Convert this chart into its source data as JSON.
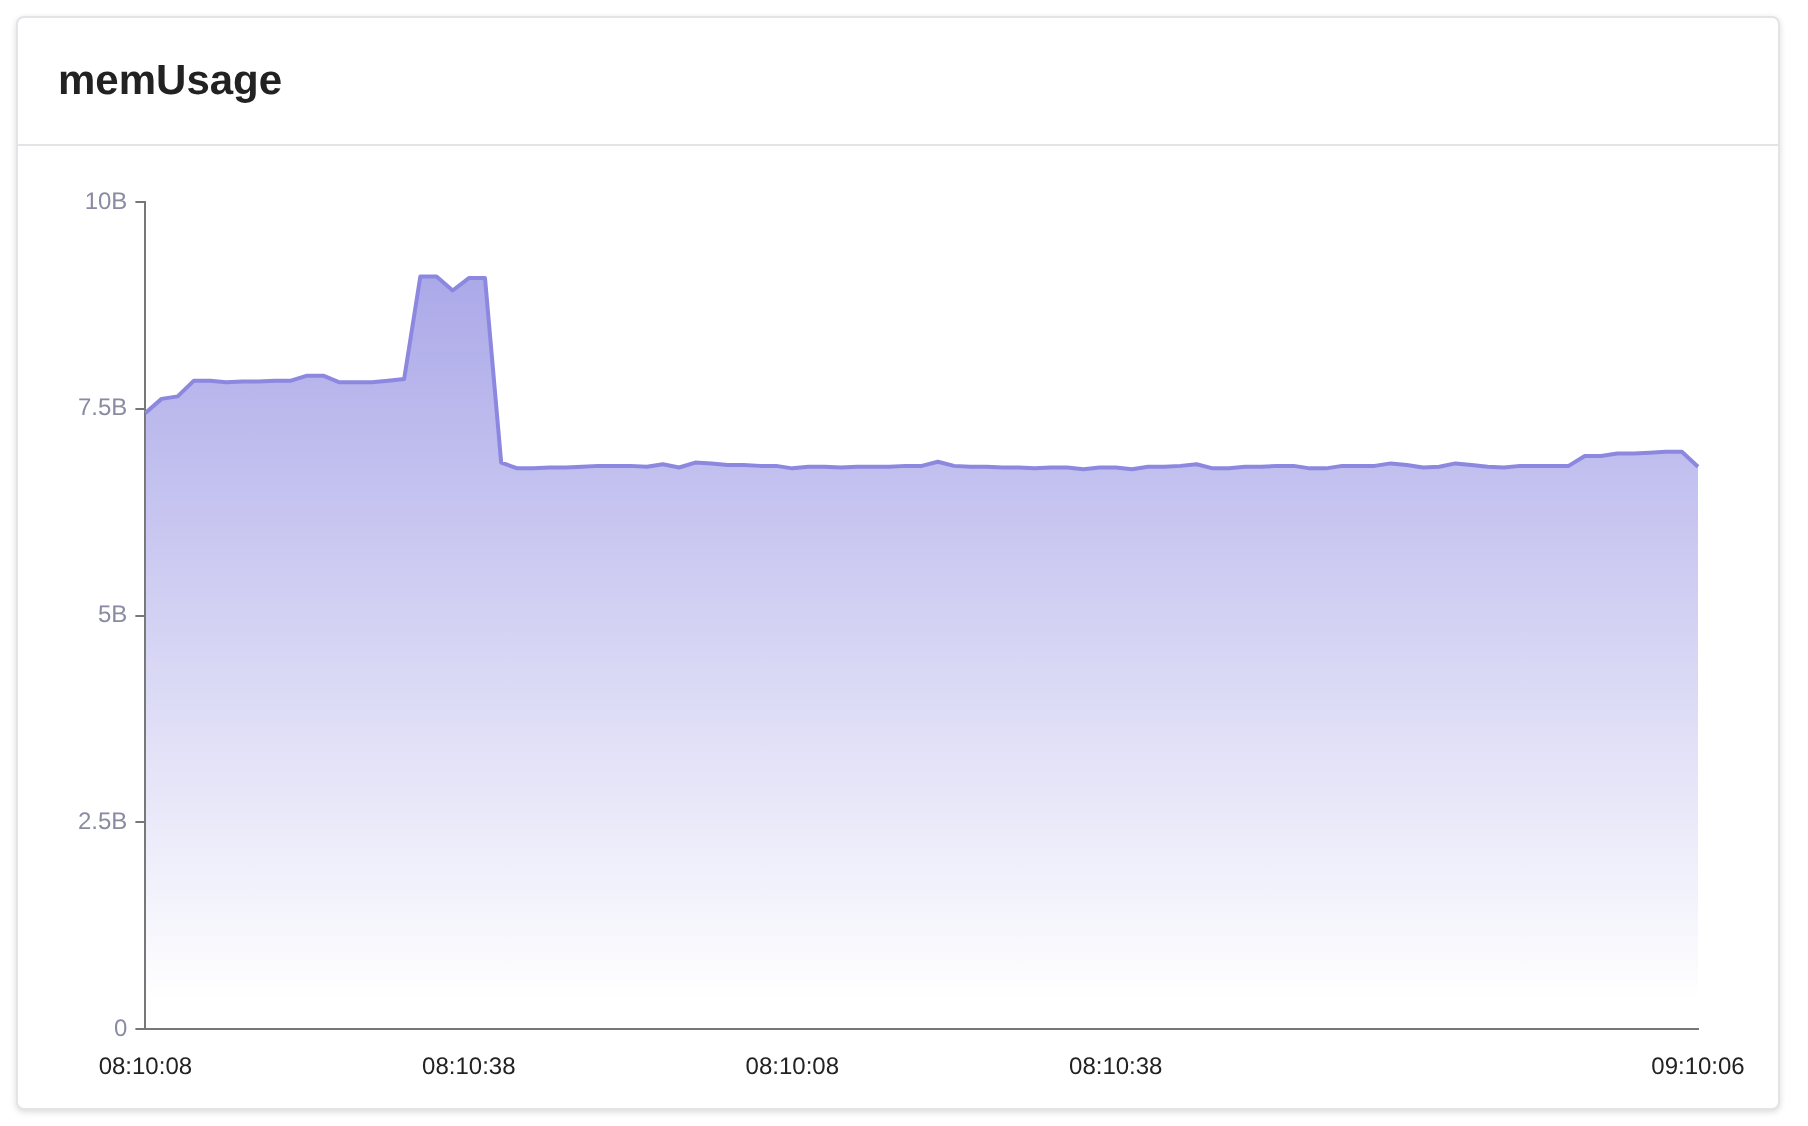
{
  "chart_data": {
    "type": "area",
    "title": "memUsage",
    "categories": [
      "08:10:08",
      null,
      null,
      null,
      null,
      null,
      null,
      null,
      null,
      null,
      null,
      null,
      null,
      null,
      null,
      null,
      null,
      null,
      null,
      null,
      "08:10:38",
      null,
      null,
      null,
      null,
      null,
      null,
      null,
      null,
      null,
      null,
      null,
      null,
      null,
      null,
      null,
      null,
      null,
      null,
      null,
      "08:10:08",
      null,
      null,
      null,
      null,
      null,
      null,
      null,
      null,
      null,
      null,
      null,
      null,
      null,
      null,
      null,
      null,
      null,
      null,
      null,
      "08:10:38",
      null,
      null,
      null,
      null,
      null,
      null,
      null,
      null,
      null,
      null,
      null,
      null,
      null,
      null,
      null,
      null,
      null,
      null,
      null,
      null,
      null,
      null,
      null,
      null,
      null,
      null,
      null,
      null,
      null,
      null,
      null,
      null,
      null,
      null,
      null,
      "09:10:06"
    ],
    "series": [
      {
        "color": "#8c88e0",
        "values": [
          7.45,
          7.62,
          7.65,
          7.84,
          7.84,
          7.82,
          7.83,
          7.83,
          7.84,
          7.84,
          7.9,
          7.9,
          7.82,
          7.82,
          7.82,
          7.84,
          7.86,
          9.1,
          9.1,
          8.93,
          9.08,
          9.08,
          6.85,
          6.78,
          6.78,
          6.79,
          6.79,
          6.8,
          6.81,
          6.81,
          6.81,
          6.8,
          6.83,
          6.79,
          6.85,
          6.84,
          6.82,
          6.82,
          6.81,
          6.81,
          6.78,
          6.8,
          6.8,
          6.79,
          6.8,
          6.8,
          6.8,
          6.81,
          6.81,
          6.86,
          6.81,
          6.8,
          6.8,
          6.79,
          6.79,
          6.78,
          6.79,
          6.79,
          6.77,
          6.79,
          6.79,
          6.77,
          6.8,
          6.8,
          6.81,
          6.83,
          6.78,
          6.78,
          6.8,
          6.8,
          6.81,
          6.81,
          6.78,
          6.78,
          6.81,
          6.81,
          6.81,
          6.84,
          6.82,
          6.79,
          6.8,
          6.84,
          6.82,
          6.8,
          6.79,
          6.81,
          6.81,
          6.81,
          6.81,
          6.93,
          6.93,
          6.96,
          6.96,
          6.97,
          6.98,
          6.98,
          6.8
        ]
      }
    ],
    "ylim": [
      0,
      10
    ],
    "yticks": [
      0,
      {
        "value": 2.5,
        "label": "2.5B"
      },
      {
        "value": 5,
        "label": "5B"
      },
      {
        "value": 7.5,
        "label": "7.5B"
      },
      {
        "value": 10,
        "label": "10B"
      }
    ],
    "grid": false,
    "marker": "none"
  }
}
